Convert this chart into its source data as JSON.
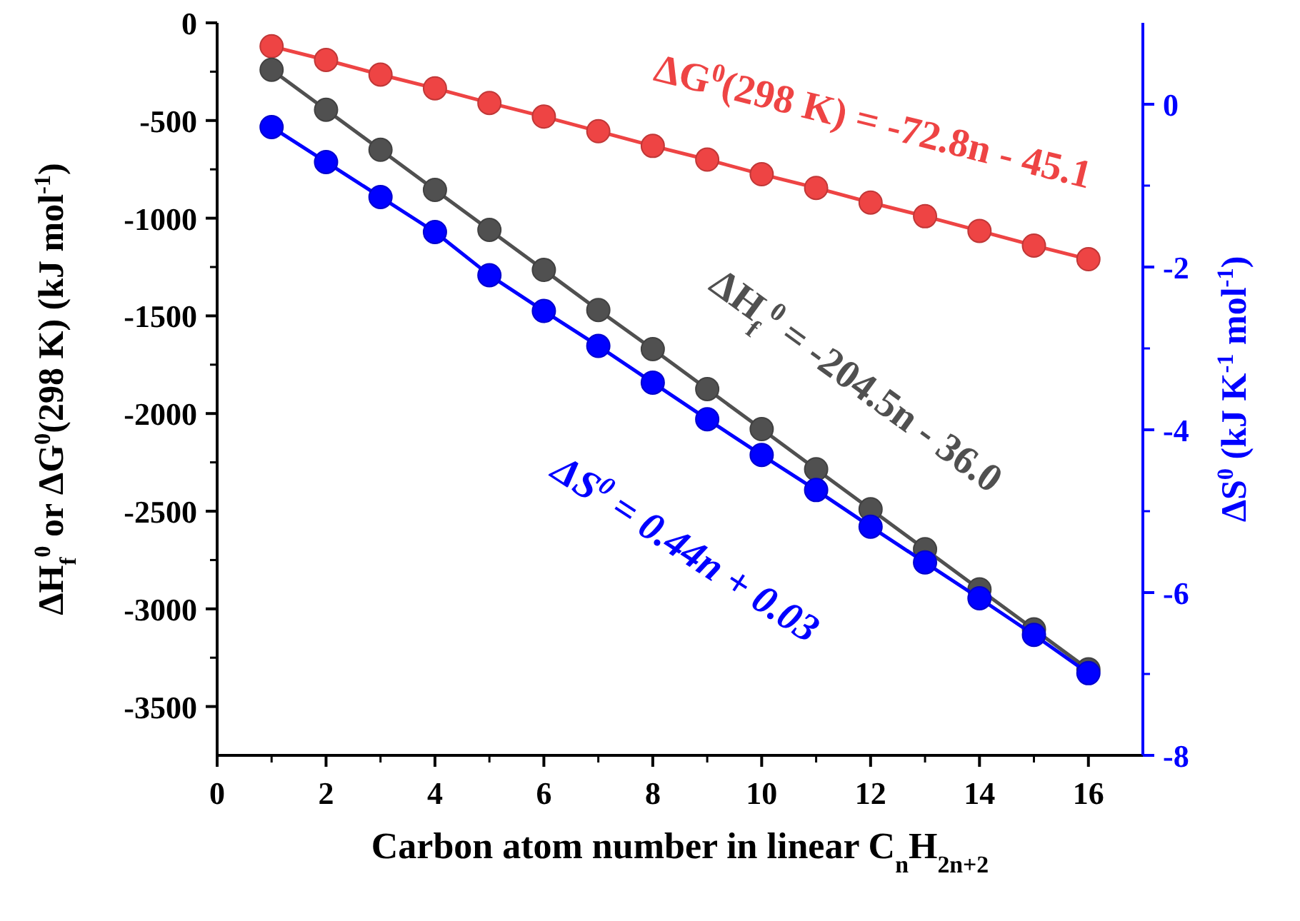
{
  "chart_data": {
    "type": "line",
    "xlabel": "Carbon atom number in linear C$_{n}$H$_{2n+2}$",
    "ylabel": "ΔH$_{f}$$^{0}$ or ΔG$^{0}$(298 K) (kJ mol$^{-1}$)",
    "y2label": "ΔS$^{0}$ (kJ K$^{-1}$ mol$^{-1}$)",
    "x": [
      1,
      2,
      3,
      4,
      5,
      6,
      7,
      8,
      9,
      10,
      11,
      12,
      13,
      14,
      15,
      16
    ],
    "xlim": [
      0,
      17
    ],
    "xticks": [
      0,
      2,
      4,
      6,
      8,
      10,
      12,
      14,
      16
    ],
    "ylim": [
      -3750,
      0
    ],
    "yticks": [
      0,
      -500,
      -1000,
      -1500,
      -2000,
      -2500,
      -3000,
      -3500
    ],
    "y2lim": [
      -8,
      1
    ],
    "y2ticks": [
      0,
      -2,
      -4,
      -6,
      -8
    ],
    "marker": "circle",
    "grid": false,
    "series": [
      {
        "color": "#ee4444",
        "values": [
          -120,
          -190,
          -265,
          -335,
          -410,
          -480,
          -555,
          -630,
          -700,
          -775,
          -845,
          -920,
          -990,
          -1065,
          -1140,
          -1210
        ]
      },
      {
        "color": "#505050",
        "values": [
          -240,
          -445,
          -650,
          -855,
          -1060,
          -1265,
          -1470,
          -1670,
          -1875,
          -2080,
          -2285,
          -2490,
          -2695,
          -2900,
          -3105,
          -3310
        ]
      },
      {
        "color": "#0000ff",
        "axis": "y2",
        "values": [
          -0.28,
          -0.71,
          -1.14,
          -1.57,
          -2.1,
          -2.54,
          -2.97,
          -3.42,
          -3.87,
          -4.31,
          -4.74,
          -5.19,
          -5.63,
          -6.07,
          -6.52,
          -6.99
        ]
      }
    ],
    "annotations": [
      "ΔG$^{0}$(298 K) = -72.8n - 45.1",
      "ΔH$_{f}$$^{0}$ = -204.5n - 36.0",
      "ΔS$^{0}$ = 0.44n + 0.03"
    ]
  }
}
